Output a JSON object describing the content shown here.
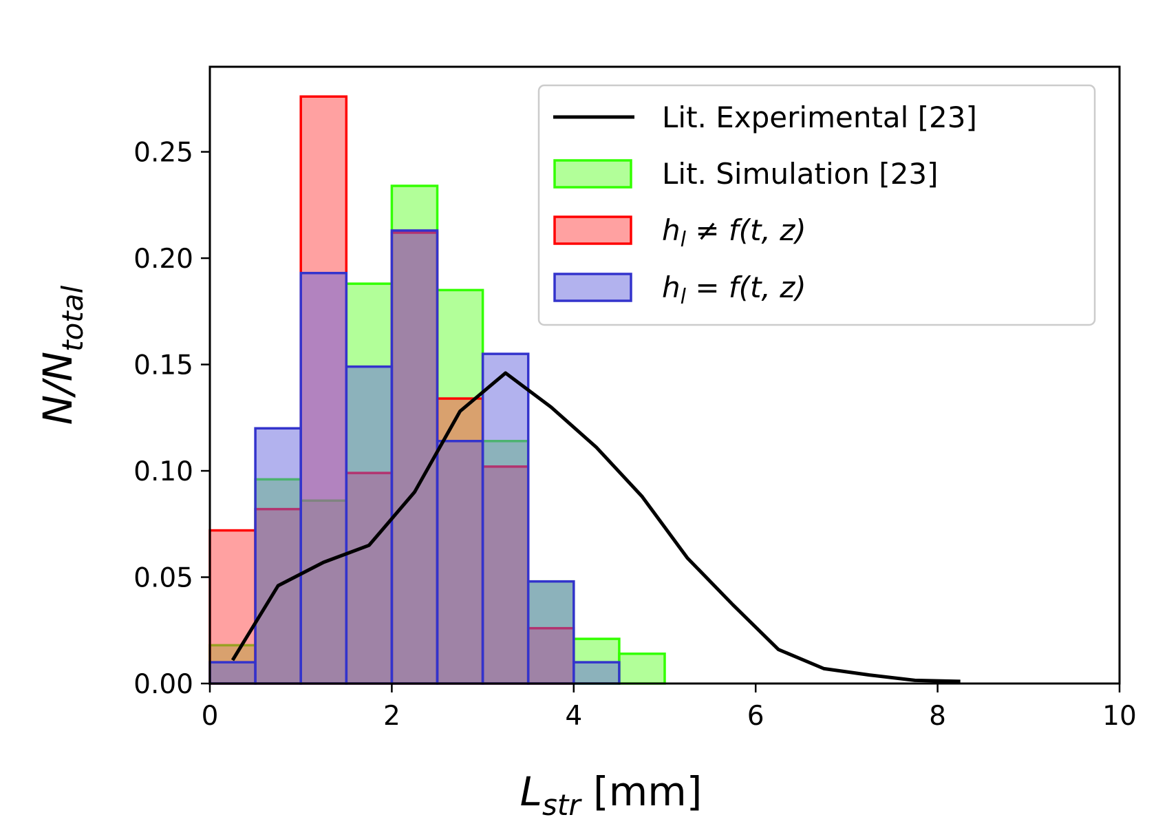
{
  "chart_data": {
    "type": "bar",
    "xlim": [
      0,
      10
    ],
    "ylim": [
      0,
      0.29
    ],
    "xticks": [
      "0",
      "2",
      "4",
      "6",
      "8",
      "10"
    ],
    "yticks": [
      "0.00",
      "0.05",
      "0.10",
      "0.15",
      "0.20",
      "0.25"
    ],
    "ylabel": "N/N_total",
    "xlabel": "L_str [mm]",
    "legend_position": "top-right",
    "grid": false,
    "bin_edges": [
      0,
      0.5,
      1,
      1.5,
      2,
      2.5,
      3,
      3.5,
      4,
      4.5,
      5
    ],
    "series": [
      {
        "name": "Lit. Simulation [23]",
        "kind": "histogram",
        "stroke": "#33ff00",
        "fill": "#66ff33",
        "values": [
          0.018,
          0.096,
          0.086,
          0.188,
          0.234,
          0.185,
          0.114,
          0.048,
          0.021,
          0.014
        ]
      },
      {
        "name": "h_l ≠ f(t, z)",
        "kind": "histogram",
        "stroke": "#ff0000",
        "fill": "#ff4444",
        "values": [
          0.072,
          0.082,
          0.276,
          0.099,
          0.212,
          0.134,
          0.102,
          0.026,
          0.0,
          0.0
        ]
      },
      {
        "name": "h_l = f(t, z)",
        "kind": "histogram",
        "stroke": "#3333cc",
        "fill": "#6666dd",
        "values": [
          0.01,
          0.12,
          0.193,
          0.149,
          0.213,
          0.114,
          0.155,
          0.048,
          0.01,
          0.0
        ]
      },
      {
        "name": "Lit. Experimental [23]",
        "kind": "line",
        "stroke": "#000000",
        "x": [
          0.25,
          0.75,
          1.25,
          1.75,
          2.25,
          2.75,
          3.25,
          3.75,
          4.25,
          4.75,
          5.25,
          5.75,
          6.25,
          6.75,
          7.25,
          7.75,
          8.25
        ],
        "y": [
          0.011,
          0.046,
          0.057,
          0.065,
          0.09,
          0.128,
          0.146,
          0.13,
          0.111,
          0.088,
          0.059,
          0.037,
          0.016,
          0.007,
          0.004,
          0.0015,
          0.001
        ]
      }
    ]
  }
}
